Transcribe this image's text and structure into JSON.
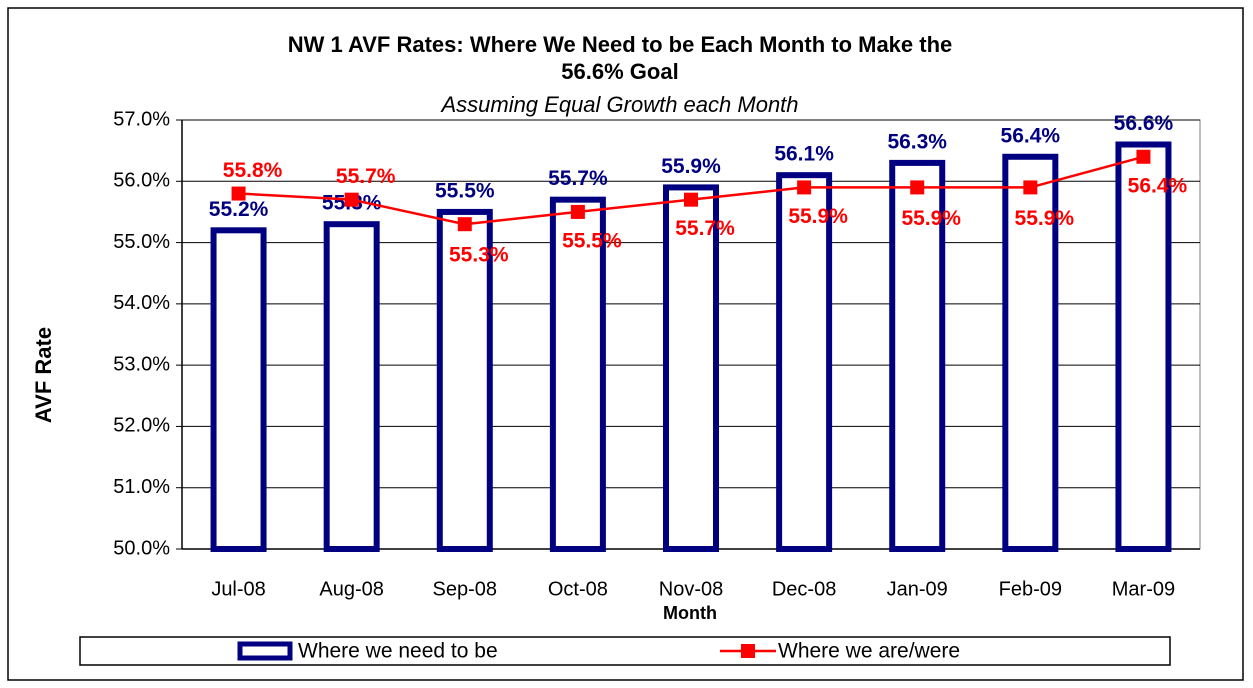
{
  "chart_data": {
    "type": "bar-line",
    "title": "NW 1 AVF Rates: Where We Need to be Each Month to Make the",
    "title_line2": "56.6% Goal",
    "subtitle": "Assuming Equal Growth each Month",
    "y_label": "AVF Rate",
    "x_label": "Month",
    "categories": [
      "Jul-08",
      "Aug-08",
      "Sep-08",
      "Oct-08",
      "Nov-08",
      "Dec-08",
      "Jan-09",
      "Feb-09",
      "Mar-09"
    ],
    "series": [
      {
        "name": "Where we need to be",
        "type": "bar",
        "color": "#000080",
        "values": [
          55.2,
          55.3,
          55.5,
          55.7,
          55.9,
          56.1,
          56.3,
          56.4,
          56.6
        ],
        "value_labels": [
          "55.2%",
          "55.3%",
          "55.5%",
          "55.7%",
          "55.9%",
          "56.1%",
          "56.3%",
          "56.4%",
          "56.6%"
        ]
      },
      {
        "name": "Where we are/were",
        "type": "line",
        "color": "#ff0000",
        "values": [
          55.8,
          55.7,
          55.3,
          55.5,
          55.7,
          55.9,
          55.9,
          55.9,
          56.4
        ],
        "value_labels": [
          "55.8%",
          "55.7%",
          "55.3%",
          "55.5%",
          "55.7%",
          "55.9%",
          "55.9%",
          "55.9%",
          "56.4%"
        ]
      }
    ],
    "ylim": [
      50,
      57
    ],
    "yticks": [
      {
        "value": 50,
        "label": "50.0%"
      },
      {
        "value": 51,
        "label": "51.0%"
      },
      {
        "value": 52,
        "label": "52.0%"
      },
      {
        "value": 53,
        "label": "53.0%"
      },
      {
        "value": 54,
        "label": "54.0%"
      },
      {
        "value": 55,
        "label": "55.0%"
      },
      {
        "value": 56,
        "label": "56.0%"
      },
      {
        "value": 57,
        "label": "57.0%"
      }
    ],
    "grid": true,
    "legend": "bottom"
  }
}
